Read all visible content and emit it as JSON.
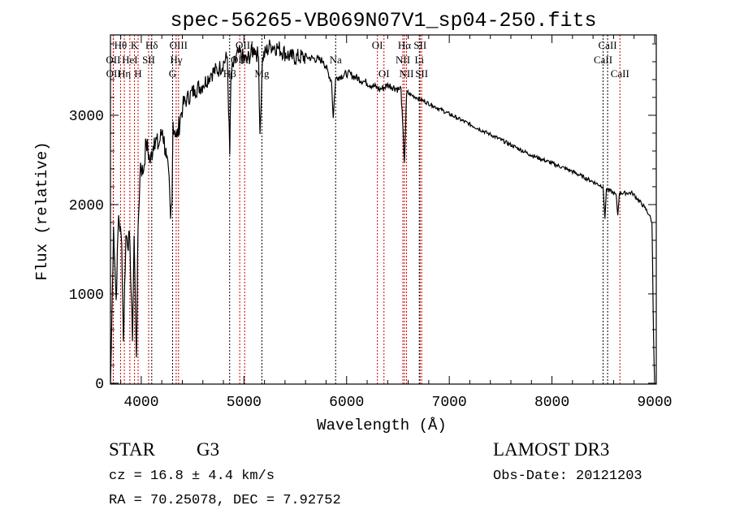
{
  "chart_data": {
    "type": "line",
    "title": "spec-56265-VB069N07V1_sp04-250.fits",
    "xlabel": "Wavelength (Å)",
    "ylabel": "Flux (relative)",
    "xlim": [
      3700,
      9016
    ],
    "ylim": [
      -10,
      3900
    ],
    "xticks": [
      4000,
      5000,
      6000,
      7000,
      8000,
      9000
    ],
    "xtick_labels": [
      "4000",
      "5000",
      "6000",
      "7000",
      "8000",
      "9000"
    ],
    "yticks": [
      0,
      1000,
      2000,
      3000
    ],
    "ytick_labels": [
      "0",
      "1000",
      "2000",
      "3000"
    ],
    "grid": false,
    "series": [
      {
        "name": "flux",
        "x": [
          3700,
          3708,
          3730,
          3755,
          3779,
          3810,
          3826,
          3850,
          3890,
          3914,
          3930,
          3953,
          3969,
          3993,
          4016,
          4048,
          4088,
          4127,
          4167,
          4206,
          4246,
          4277,
          4285,
          4300,
          4309,
          4348,
          4388,
          4404,
          4443,
          4522,
          4601,
          4680,
          4759,
          4838,
          4862,
          4874,
          4945,
          5024,
          5103,
          5143,
          5156,
          5182,
          5261,
          5339,
          5458,
          5616,
          5774,
          5853,
          5870,
          5892,
          5920,
          6011,
          6169,
          6327,
          6406,
          6506,
          6530,
          6563,
          6585,
          6680,
          6838,
          7075,
          7391,
          7787,
          8182,
          8498,
          8516,
          8530,
          8625,
          8641,
          8657,
          8783,
          8902,
          8950,
          8974,
          8990,
          9000
        ],
        "y": [
          0,
          380,
          1750,
          930,
          1880,
          1560,
          470,
          1650,
          1560,
          470,
          1650,
          290,
          1750,
          2470,
          2340,
          2700,
          2470,
          2750,
          2650,
          2840,
          2520,
          2150,
          1840,
          2020,
          2930,
          2750,
          3020,
          3110,
          3180,
          3290,
          3340,
          3470,
          3520,
          3650,
          2560,
          3470,
          3700,
          3610,
          3750,
          3650,
          2790,
          3650,
          3790,
          3750,
          3650,
          3650,
          3610,
          3380,
          2970,
          3400,
          3430,
          3470,
          3380,
          3290,
          3340,
          3290,
          3300,
          2470,
          3250,
          3200,
          3110,
          2970,
          2790,
          2560,
          2380,
          2200,
          1840,
          2180,
          2110,
          1880,
          2130,
          2130,
          1970,
          1880,
          1800,
          500,
          20
        ]
      }
    ],
    "lines": [
      {
        "label": "Hθ",
        "wave": 3798,
        "row": 1,
        "color": "#cc0000"
      },
      {
        "label": "K",
        "wave": 3934,
        "row": 1,
        "color": "#cc0000"
      },
      {
        "label": "Hδ",
        "wave": 4102,
        "row": 1,
        "color": "#000000"
      },
      {
        "label": "OIII",
        "wave": 4363,
        "row": 1,
        "color": "#cc0000"
      },
      {
        "label": "OIII",
        "wave": 5007,
        "row": 1,
        "color": "#cc0000"
      },
      {
        "label": "OI",
        "wave": 6300,
        "row": 1,
        "color": "#cc0000"
      },
      {
        "label": "Hα",
        "wave": 6563,
        "row": 1,
        "color": "#cc0000"
      },
      {
        "label": "SII",
        "wave": 6716,
        "row": 1,
        "color": "#cc0000"
      },
      {
        "label": "CaII",
        "wave": 8542,
        "row": 1,
        "color": "#000000"
      },
      {
        "label": "OII",
        "wave": 3727,
        "row": 2,
        "color": "#cc0000"
      },
      {
        "label": "HeI",
        "wave": 3889,
        "row": 2,
        "color": "#cc0000"
      },
      {
        "label": "SII",
        "wave": 4072,
        "row": 2,
        "color": "#cc0000"
      },
      {
        "label": "Hγ",
        "wave": 4340,
        "row": 2,
        "color": "#cc0000"
      },
      {
        "label": "OIII",
        "wave": 4959,
        "row": 2,
        "color": "#cc0000"
      },
      {
        "label": "Na",
        "wave": 5893,
        "row": 2,
        "color": "#000000"
      },
      {
        "label": "NII",
        "wave": 6548,
        "row": 2,
        "color": "#cc0000"
      },
      {
        "label": "Li",
        "wave": 6708,
        "row": 2,
        "color": "#000000"
      },
      {
        "label": "CaII",
        "wave": 8498,
        "row": 2,
        "color": "#000000"
      },
      {
        "label": "OII",
        "wave": 3729,
        "row": 3,
        "color": "#cc0000"
      },
      {
        "label": "Hη",
        "wave": 3835,
        "row": 3,
        "color": "#cc0000"
      },
      {
        "label": "H",
        "wave": 3969,
        "row": 3,
        "color": "#cc0000"
      },
      {
        "label": "G",
        "wave": 4305,
        "row": 3,
        "color": "#000000"
      },
      {
        "label": "Hβ",
        "wave": 4861,
        "row": 3,
        "color": "#000000"
      },
      {
        "label": "Mg",
        "wave": 5175,
        "row": 3,
        "color": "#000000"
      },
      {
        "label": "OI",
        "wave": 6364,
        "row": 3,
        "color": "#cc0000"
      },
      {
        "label": "NII",
        "wave": 6583,
        "row": 3,
        "color": "#cc0000"
      },
      {
        "label": "SII",
        "wave": 6731,
        "row": 3,
        "color": "#cc0000"
      },
      {
        "label": "CaII",
        "wave": 8662,
        "row": 3,
        "color": "#cc0000"
      }
    ]
  },
  "info": {
    "class": "STAR",
    "subclass": "G3",
    "cz": "cz = 16.8 ± 4.4 km/s",
    "radec": "RA =  70.25078, DEC =   7.92752",
    "survey": "LAMOST DR3",
    "obsdate": "Obs-Date: 20121203"
  }
}
